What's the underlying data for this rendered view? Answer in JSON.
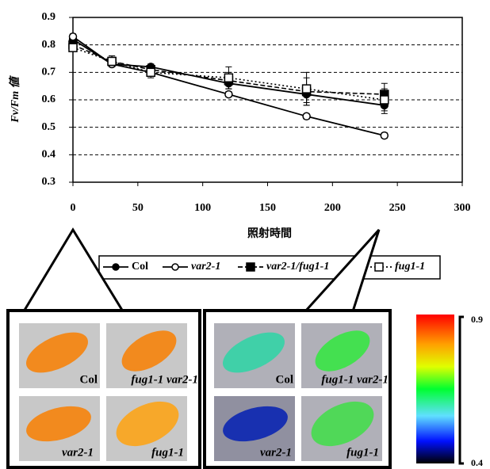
{
  "chart_data": {
    "type": "line",
    "xlabel": "照射時間",
    "ylabel": "Fv/Fm 値",
    "x": [
      0,
      30,
      60,
      120,
      180,
      240
    ],
    "xlim": [
      0,
      300
    ],
    "xticks": [
      0,
      50,
      100,
      150,
      200,
      250,
      300
    ],
    "ylim": [
      0.3,
      0.9
    ],
    "yticks": [
      0.3,
      0.4,
      0.5,
      0.6,
      0.7,
      0.8,
      0.9
    ],
    "grid": true,
    "series": [
      {
        "name": "Col",
        "color": "#000000",
        "style": "solid",
        "marker": "filled-circle",
        "values": [
          0.82,
          0.73,
          0.72,
          0.66,
          0.62,
          0.58
        ],
        "errors": [
          0.01,
          0.01,
          0.01,
          0.02,
          0.03,
          0.03
        ]
      },
      {
        "name": "var2-1",
        "color": "#000000",
        "style": "solid",
        "marker": "open-circle",
        "values": [
          0.83,
          0.73,
          0.7,
          0.62,
          0.54,
          0.47
        ],
        "errors": [
          0.01,
          0.01,
          0.01,
          0.01,
          0.01,
          0.01
        ]
      },
      {
        "name": "var2-1/fug1-1",
        "color": "#000000",
        "style": "dashed",
        "marker": "filled-square",
        "values": [
          0.8,
          0.74,
          0.71,
          0.67,
          0.63,
          0.62
        ],
        "errors": [
          0.01,
          0.02,
          0.02,
          0.03,
          0.05,
          0.04
        ]
      },
      {
        "name": "fug1-1",
        "color": "#000000",
        "style": "dotted",
        "marker": "open-square",
        "values": [
          0.79,
          0.74,
          0.7,
          0.68,
          0.64,
          0.6
        ],
        "errors": [
          0.01,
          0.02,
          0.02,
          0.04,
          0.06,
          0.04
        ]
      }
    ]
  },
  "image_panels": [
    {
      "labels": [
        "Col",
        "fug1-1 var2-1",
        "var2-1",
        "fug1-1"
      ]
    },
    {
      "labels": [
        "Col",
        "fug1-1 var2-1",
        "var2-1",
        "fug1-1"
      ]
    }
  ],
  "colorbar": {
    "ticks": [
      0.9,
      0.4
    ]
  }
}
